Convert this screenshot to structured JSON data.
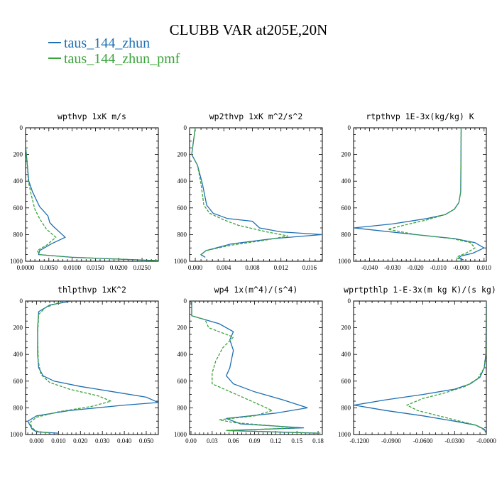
{
  "title": "CLUBB VAR at205E,20N",
  "legend": [
    {
      "label": "taus_144_zhun",
      "color": "#1f6fb2"
    },
    {
      "label": "taus_144_zhun_pmf",
      "color": "#3aa33a"
    }
  ],
  "chart_data": [
    {
      "type": "line",
      "title": "wpthvp  1xK m/s",
      "xlim": [
        0,
        0.0285
      ],
      "ylim": [
        1000,
        0
      ],
      "xticks": [
        0,
        0.005,
        0.01,
        0.015,
        0.02,
        0.025
      ],
      "xtick_labels": [
        "0.0000",
        "0.0050",
        "0.0100",
        "0.0150",
        "0.0200",
        "0.0250"
      ],
      "yticks": [
        0,
        200,
        400,
        600,
        800,
        1000
      ],
      "series": [
        {
          "name": "taus_144_zhun",
          "color": "#1f6fb2",
          "dashed": false,
          "x": [
            0.0,
            0.0003,
            0.0007,
            0.0015,
            0.003,
            0.0048,
            0.0052,
            0.006,
            0.0085,
            0.0055,
            0.003,
            0.0028,
            0.01,
            0.0285
          ],
          "y": [
            130,
            250,
            400,
            480,
            590,
            660,
            710,
            740,
            820,
            870,
            920,
            950,
            970,
            995
          ]
        },
        {
          "name": "taus_144_zhun_pmf",
          "color": "#3aa33a",
          "dashed": true,
          "x": [
            0.0,
            0.0003,
            0.0006,
            0.0012,
            0.002,
            0.003,
            0.0045,
            0.0065,
            0.0045,
            0.0025,
            0.003,
            0.01,
            0.0285
          ],
          "y": [
            130,
            250,
            400,
            500,
            610,
            680,
            760,
            820,
            880,
            920,
            950,
            970,
            995
          ]
        }
      ]
    },
    {
      "type": "line",
      "title": "wp2thvp  1xK m^2/s^2",
      "xlim": [
        -0.0008,
        0.0178
      ],
      "ylim": [
        1000,
        0
      ],
      "xticks": [
        0,
        0.004,
        0.008,
        0.012,
        0.016
      ],
      "xtick_labels": [
        "0.000",
        "0.004",
        "0.008",
        "0.012",
        "0.016"
      ],
      "yticks": [
        0,
        200,
        400,
        600,
        800,
        1000
      ],
      "series": [
        {
          "name": "taus_144_zhun",
          "color": "#1f6fb2",
          "dashed": false,
          "x": [
            0.0,
            -0.0005,
            0.0003,
            0.001,
            0.0016,
            0.0025,
            0.0045,
            0.008,
            0.009,
            0.012,
            0.0178,
            0.011,
            0.005,
            0.0015,
            0.0008,
            0.0014
          ],
          "y": [
            0,
            200,
            280,
            420,
            580,
            640,
            680,
            700,
            750,
            780,
            800,
            830,
            870,
            920,
            950,
            970
          ]
        },
        {
          "name": "taus_144_zhun_pmf",
          "color": "#3aa33a",
          "dashed": true,
          "x": [
            0.0,
            -0.0005,
            0.0003,
            0.0008,
            0.0012,
            0.002,
            0.004,
            0.006,
            0.01,
            0.013,
            0.01,
            0.005,
            0.0015,
            0.0008,
            0.001
          ],
          "y": [
            0,
            200,
            280,
            420,
            580,
            640,
            690,
            730,
            780,
            810,
            840,
            880,
            920,
            950,
            970
          ]
        }
      ]
    },
    {
      "type": "line",
      "title": "rtpthvp  1E-3x(kg/kg) K",
      "xlim": [
        -0.047,
        0.011
      ],
      "ylim": [
        1000,
        0
      ],
      "xticks": [
        -0.04,
        -0.03,
        -0.02,
        -0.01,
        0,
        0.01
      ],
      "xtick_labels": [
        "-0.040",
        "-0.030",
        "-0.020",
        "-0.010",
        "-0.000",
        "0.010"
      ],
      "yticks": [
        0,
        200,
        400,
        600,
        800,
        1000
      ],
      "series": [
        {
          "name": "taus_144_zhun",
          "color": "#1f6fb2",
          "dashed": false,
          "x": [
            0.0,
            -0.0002,
            -0.001,
            -0.003,
            -0.007,
            -0.015,
            -0.03,
            -0.047,
            -0.02,
            -0.003,
            0.006,
            0.01,
            0.005,
            0.0,
            -0.001,
            0.001
          ],
          "y": [
            0,
            480,
            560,
            610,
            650,
            680,
            720,
            750,
            800,
            830,
            860,
            900,
            940,
            960,
            975,
            990
          ]
        },
        {
          "name": "taus_144_zhun_pmf",
          "color": "#3aa33a",
          "dashed": true,
          "x": [
            0.0,
            -0.0002,
            -0.001,
            -0.003,
            -0.007,
            -0.015,
            -0.025,
            -0.032,
            -0.02,
            -0.004,
            0.004,
            0.006,
            0.002,
            -0.001,
            -0.002,
            0.0
          ],
          "y": [
            0,
            480,
            560,
            610,
            650,
            690,
            730,
            760,
            800,
            830,
            860,
            900,
            940,
            960,
            975,
            990
          ]
        }
      ]
    },
    {
      "type": "line",
      "title": "thlpthvp  1xK^2",
      "xlim": [
        -0.005,
        0.0555
      ],
      "ylim": [
        1000,
        0
      ],
      "xticks": [
        0,
        0.01,
        0.02,
        0.03,
        0.04,
        0.05
      ],
      "xtick_labels": [
        "0.000",
        "0.010",
        "0.020",
        "0.030",
        "0.040",
        "0.050"
      ],
      "yticks": [
        0,
        200,
        400,
        600,
        800,
        1000
      ],
      "series": [
        {
          "name": "taus_144_zhun",
          "color": "#1f6fb2",
          "dashed": false,
          "x": [
            0.016,
            0.006,
            0.001,
            0.0005,
            0.0005,
            0.001,
            0.003,
            0.008,
            0.02,
            0.035,
            0.05,
            0.0555,
            0.04,
            0.015,
            0.0,
            -0.004,
            -0.003,
            -0.002,
            0.0,
            0.01
          ],
          "y": [
            0,
            30,
            80,
            200,
            400,
            500,
            560,
            600,
            640,
            680,
            720,
            760,
            780,
            820,
            860,
            900,
            930,
            960,
            980,
            990
          ]
        },
        {
          "name": "taus_144_zhun_pmf",
          "color": "#3aa33a",
          "dashed": true,
          "x": [
            0.012,
            0.004,
            0.001,
            0.0005,
            0.0008,
            0.002,
            0.006,
            0.015,
            0.028,
            0.034,
            0.025,
            0.01,
            0.0,
            -0.003,
            -0.002,
            0.0,
            0.006
          ],
          "y": [
            0,
            50,
            100,
            250,
            450,
            550,
            610,
            660,
            710,
            750,
            790,
            830,
            870,
            910,
            950,
            975,
            990
          ]
        }
      ]
    },
    {
      "type": "line",
      "title": "wp4  1x(m^4)/(s^4)",
      "xlim": [
        -0.002,
        0.186
      ],
      "ylim": [
        1000,
        0
      ],
      "xticks": [
        0,
        0.03,
        0.06,
        0.09,
        0.12,
        0.15,
        0.18
      ],
      "xtick_labels": [
        "0.00",
        "0.03",
        "0.06",
        "0.09",
        "0.12",
        "0.15",
        "0.18"
      ],
      "yticks": [
        0,
        200,
        400,
        600,
        800,
        1000
      ],
      "series": [
        {
          "name": "taus_144_zhun",
          "color": "#1f6fb2",
          "dashed": false,
          "x": [
            0.001,
            0.001,
            0.02,
            0.04,
            0.06,
            0.055,
            0.06,
            0.055,
            0.05,
            0.06,
            0.09,
            0.13,
            0.165,
            0.12,
            0.05,
            0.07,
            0.16,
            0.05,
            0.18
          ],
          "y": [
            0,
            110,
            140,
            170,
            230,
            290,
            370,
            500,
            560,
            620,
            680,
            740,
            800,
            840,
            880,
            920,
            950,
            970,
            990
          ]
        },
        {
          "name": "taus_144_zhun_pmf",
          "color": "#3aa33a",
          "dashed": true,
          "x": [
            0.001,
            0.001,
            0.02,
            0.025,
            0.045,
            0.06,
            0.045,
            0.035,
            0.03,
            0.03,
            0.06,
            0.09,
            0.115,
            0.09,
            0.04,
            0.06,
            0.15,
            0.05,
            0.186
          ],
          "y": [
            0,
            110,
            140,
            200,
            240,
            270,
            350,
            450,
            540,
            620,
            690,
            760,
            820,
            860,
            890,
            910,
            950,
            970,
            990
          ]
        }
      ]
    },
    {
      "type": "line",
      "title": "wprtpthlp  1-E-3x(m kg K)/(s kg)",
      "xlim": [
        -0.1255,
        0.0
      ],
      "ylim": [
        1000,
        0
      ],
      "xticks": [
        -0.12,
        -0.09,
        -0.06,
        -0.03,
        0.0
      ],
      "xtick_labels": [
        "-0.1200",
        "-0.0900",
        "-0.0600",
        "-0.0300",
        "-0.0000"
      ],
      "yticks": [
        0,
        200,
        400,
        600,
        800,
        1000
      ],
      "series": [
        {
          "name": "taus_144_zhun",
          "color": "#1f6fb2",
          "dashed": false,
          "x": [
            0.0,
            -0.0005,
            -0.002,
            -0.006,
            -0.015,
            -0.03,
            -0.06,
            -0.095,
            -0.125,
            -0.095,
            -0.06,
            -0.03,
            -0.01,
            -0.002,
            0.0
          ],
          "y": [
            0,
            400,
            500,
            570,
            620,
            660,
            700,
            740,
            780,
            820,
            860,
            900,
            930,
            960,
            990
          ]
        },
        {
          "name": "taus_144_zhun_pmf",
          "color": "#3aa33a",
          "dashed": true,
          "x": [
            0.0,
            -0.0005,
            -0.002,
            -0.008,
            -0.02,
            -0.04,
            -0.06,
            -0.075,
            -0.065,
            -0.045,
            -0.025,
            -0.01,
            -0.003,
            0.0
          ],
          "y": [
            0,
            400,
            500,
            580,
            640,
            690,
            730,
            780,
            820,
            860,
            900,
            930,
            960,
            990
          ]
        }
      ]
    }
  ]
}
